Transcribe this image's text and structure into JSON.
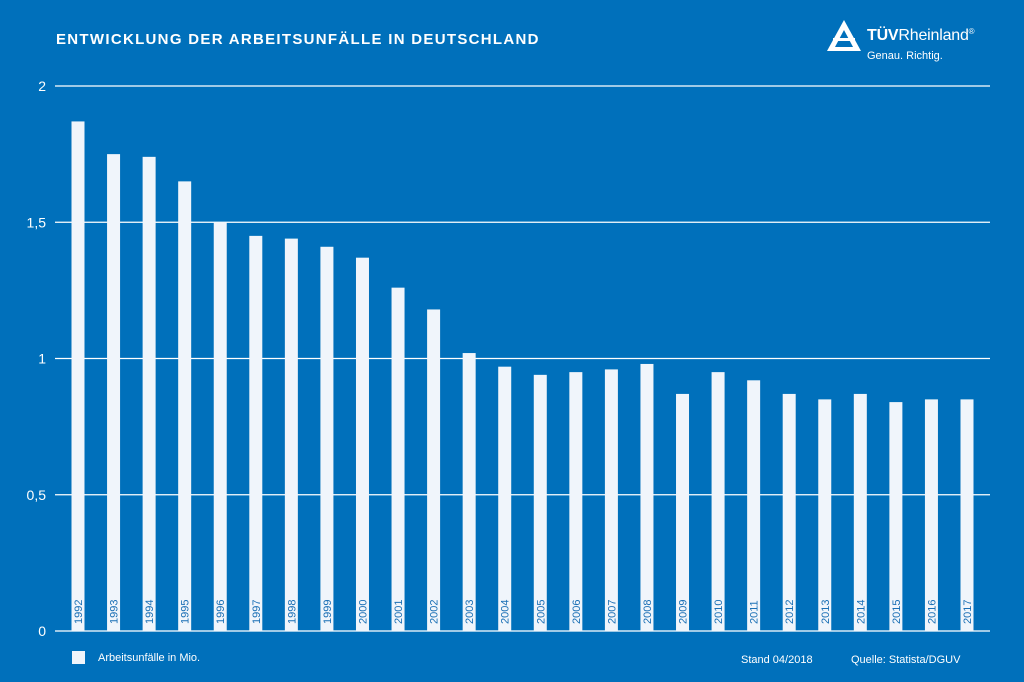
{
  "header": {
    "title": "ENTWICKLUNG DER ARBEITSUNFÄLLE IN DEUTSCHLAND"
  },
  "logo": {
    "brand_bold": "TÜV",
    "brand_rest": "Rheinland",
    "registered": "®",
    "slogan": "Genau. Richtig."
  },
  "footer": {
    "stand": "Stand 04/2018",
    "source": "Quelle: Statista/DGUV"
  },
  "colors": {
    "background": "#0070bb",
    "bar": "#f0f5fb",
    "grid": "#ffffff",
    "bar_label": "#1a6fb5"
  },
  "chart_data": {
    "type": "bar",
    "title": "ENTWICKLUNG DER ARBEITSUNFÄLLE IN DEUTSCHLAND",
    "xlabel": "",
    "ylabel": "",
    "ylim": [
      0,
      2
    ],
    "yticks": [
      0,
      0.5,
      1,
      1.5,
      2
    ],
    "ytick_labels": [
      "0",
      "0,5",
      "1",
      "1,5",
      "2"
    ],
    "grid": true,
    "legend_position": "bottom-left",
    "categories": [
      "1992",
      "1993",
      "1994",
      "1995",
      "1996",
      "1997",
      "1998",
      "1999",
      "2000",
      "2001",
      "2002",
      "2003",
      "2004",
      "2005",
      "2006",
      "2007",
      "2008",
      "2009",
      "2010",
      "2011",
      "2012",
      "2013",
      "2014",
      "2015",
      "2016",
      "2017"
    ],
    "series": [
      {
        "name": "Arbeitsunfälle in Mio.",
        "values": [
          1.87,
          1.75,
          1.74,
          1.65,
          1.5,
          1.45,
          1.44,
          1.41,
          1.37,
          1.26,
          1.18,
          1.02,
          0.97,
          0.94,
          0.95,
          0.96,
          0.98,
          0.87,
          0.95,
          0.92,
          0.87,
          0.85,
          0.87,
          0.84,
          0.85,
          0.85
        ]
      }
    ]
  }
}
